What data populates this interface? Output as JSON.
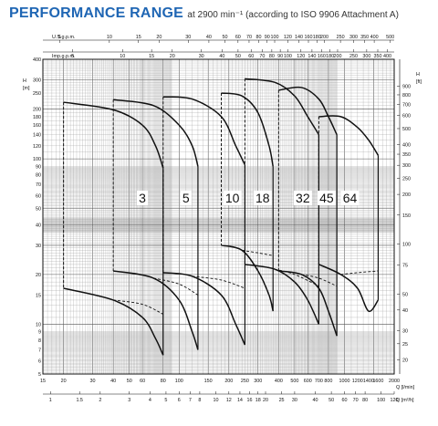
{
  "title": {
    "main": "PERFORMANCE RANGE",
    "sub": "at 2900 min⁻¹ (according to ISO 9906 Attachment A)"
  },
  "chart_data": {
    "type": "line",
    "scale": "log-log",
    "grid": true,
    "axes": {
      "usgpm": {
        "label": "U.S.g.p.m.",
        "ticks": [
          5,
          10,
          15,
          20,
          30,
          40,
          50,
          60,
          70,
          80,
          90,
          100,
          120,
          140,
          160,
          180,
          200,
          250,
          300,
          350,
          400,
          500
        ]
      },
      "impgpm": {
        "label": "Imp.g.p.m.",
        "ticks": [
          5,
          10,
          15,
          20,
          30,
          40,
          50,
          60,
          70,
          80,
          90,
          100,
          120,
          140,
          160,
          180,
          200,
          250,
          300,
          350,
          400
        ]
      },
      "q_lmin": {
        "label": "Q [l/min]",
        "ticks": [
          15,
          20,
          30,
          40,
          50,
          60,
          80,
          100,
          150,
          200,
          250,
          300,
          400,
          500,
          600,
          700,
          800,
          1000,
          1200,
          1400,
          1600,
          2000
        ],
        "range": [
          15,
          2000
        ]
      },
      "q_m3h": {
        "label": "Q [m³/h]",
        "ticks": [
          1,
          1.5,
          2,
          3,
          4,
          5,
          6,
          7,
          8,
          10,
          12,
          14,
          16,
          18,
          20,
          25,
          30,
          40,
          50,
          60,
          70,
          80,
          100,
          120
        ]
      },
      "h_m": {
        "label": "H\n[m]",
        "ticks": [
          5,
          6,
          7,
          8,
          9,
          10,
          15,
          20,
          30,
          40,
          50,
          60,
          70,
          80,
          90,
          100,
          120,
          140,
          160,
          180,
          200,
          250,
          300,
          400
        ],
        "range": [
          5,
          400
        ]
      },
      "h_ft": {
        "label": "H\n[ft]",
        "ticks": [
          20,
          25,
          30,
          40,
          50,
          75,
          100,
          150,
          200,
          250,
          300,
          350,
          400,
          500,
          600,
          700,
          800,
          900
        ]
      }
    },
    "series": [
      {
        "name": "3",
        "top": [
          [
            20,
            220
          ],
          [
            40,
            198
          ],
          [
            60,
            160
          ],
          [
            72,
            120
          ],
          [
            80,
            88
          ]
        ],
        "bottom": [
          [
            20,
            16.5
          ],
          [
            40,
            14
          ],
          [
            60,
            11
          ],
          [
            72,
            8.2
          ],
          [
            80,
            6.5
          ]
        ],
        "dashed": [
          [
            40,
            14
          ],
          [
            60,
            13.2
          ],
          [
            80,
            11.5
          ]
        ]
      },
      {
        "name": "5",
        "top": [
          [
            40,
            228
          ],
          [
            70,
            210
          ],
          [
            100,
            160
          ],
          [
            120,
            120
          ],
          [
            130,
            90
          ]
        ],
        "bottom": [
          [
            40,
            21
          ],
          [
            70,
            19
          ],
          [
            100,
            14
          ],
          [
            120,
            9
          ],
          [
            130,
            7
          ]
        ],
        "dashed": [
          [
            70,
            19
          ],
          [
            100,
            17.5
          ],
          [
            130,
            15
          ]
        ]
      },
      {
        "name": "10",
        "top": [
          [
            80,
            237
          ],
          [
            120,
            230
          ],
          [
            180,
            180
          ],
          [
            220,
            120
          ],
          [
            250,
            92
          ]
        ],
        "bottom": [
          [
            80,
            20.5
          ],
          [
            120,
            19.5
          ],
          [
            180,
            15
          ],
          [
            220,
            10
          ],
          [
            250,
            7.5
          ]
        ],
        "dashed": [
          [
            120,
            19.5
          ],
          [
            180,
            18.5
          ],
          [
            250,
            16.5
          ]
        ]
      },
      {
        "name": "18",
        "top": [
          [
            180,
            250
          ],
          [
            240,
            240
          ],
          [
            300,
            190
          ],
          [
            350,
            120
          ],
          [
            370,
            90
          ]
        ],
        "bottom": [
          [
            180,
            30
          ],
          [
            240,
            28
          ],
          [
            300,
            21
          ],
          [
            350,
            15
          ],
          [
            370,
            12
          ]
        ],
        "dashed": [
          [
            240,
            28
          ],
          [
            300,
            27
          ],
          [
            370,
            26
          ]
        ]
      },
      {
        "name": "32",
        "top": [
          [
            250,
            305
          ],
          [
            380,
            290
          ],
          [
            500,
            240
          ],
          [
            600,
            180
          ],
          [
            700,
            140
          ]
        ],
        "bottom": [
          [
            250,
            23
          ],
          [
            380,
            21.5
          ],
          [
            500,
            18
          ],
          [
            600,
            14
          ],
          [
            700,
            10
          ]
        ],
        "dashed": [
          [
            380,
            21.5
          ],
          [
            500,
            20
          ],
          [
            700,
            17
          ]
        ]
      },
      {
        "name": "45",
        "top": [
          [
            400,
            260
          ],
          [
            550,
            270
          ],
          [
            700,
            230
          ],
          [
            800,
            180
          ],
          [
            900,
            140
          ]
        ],
        "bottom": [
          [
            400,
            21
          ],
          [
            550,
            20
          ],
          [
            700,
            16.5
          ],
          [
            800,
            12
          ],
          [
            900,
            8.5
          ]
        ],
        "dashed": [
          [
            550,
            20
          ],
          [
            700,
            19
          ],
          [
            900,
            17
          ]
        ]
      },
      {
        "name": "64",
        "top": [
          [
            700,
            180
          ],
          [
            950,
            180
          ],
          [
            1200,
            155
          ],
          [
            1400,
            130
          ],
          [
            1600,
            105
          ]
        ],
        "bottom": [
          [
            700,
            23
          ],
          [
            950,
            20
          ],
          [
            1200,
            16.5
          ],
          [
            1400,
            12
          ],
          [
            1600,
            14
          ]
        ],
        "dashed": [
          [
            950,
            20
          ],
          [
            1200,
            20.5
          ],
          [
            1600,
            21
          ]
        ]
      }
    ],
    "model_labels": [
      "3",
      "5",
      "10",
      "18",
      "32",
      "45",
      "64"
    ]
  }
}
